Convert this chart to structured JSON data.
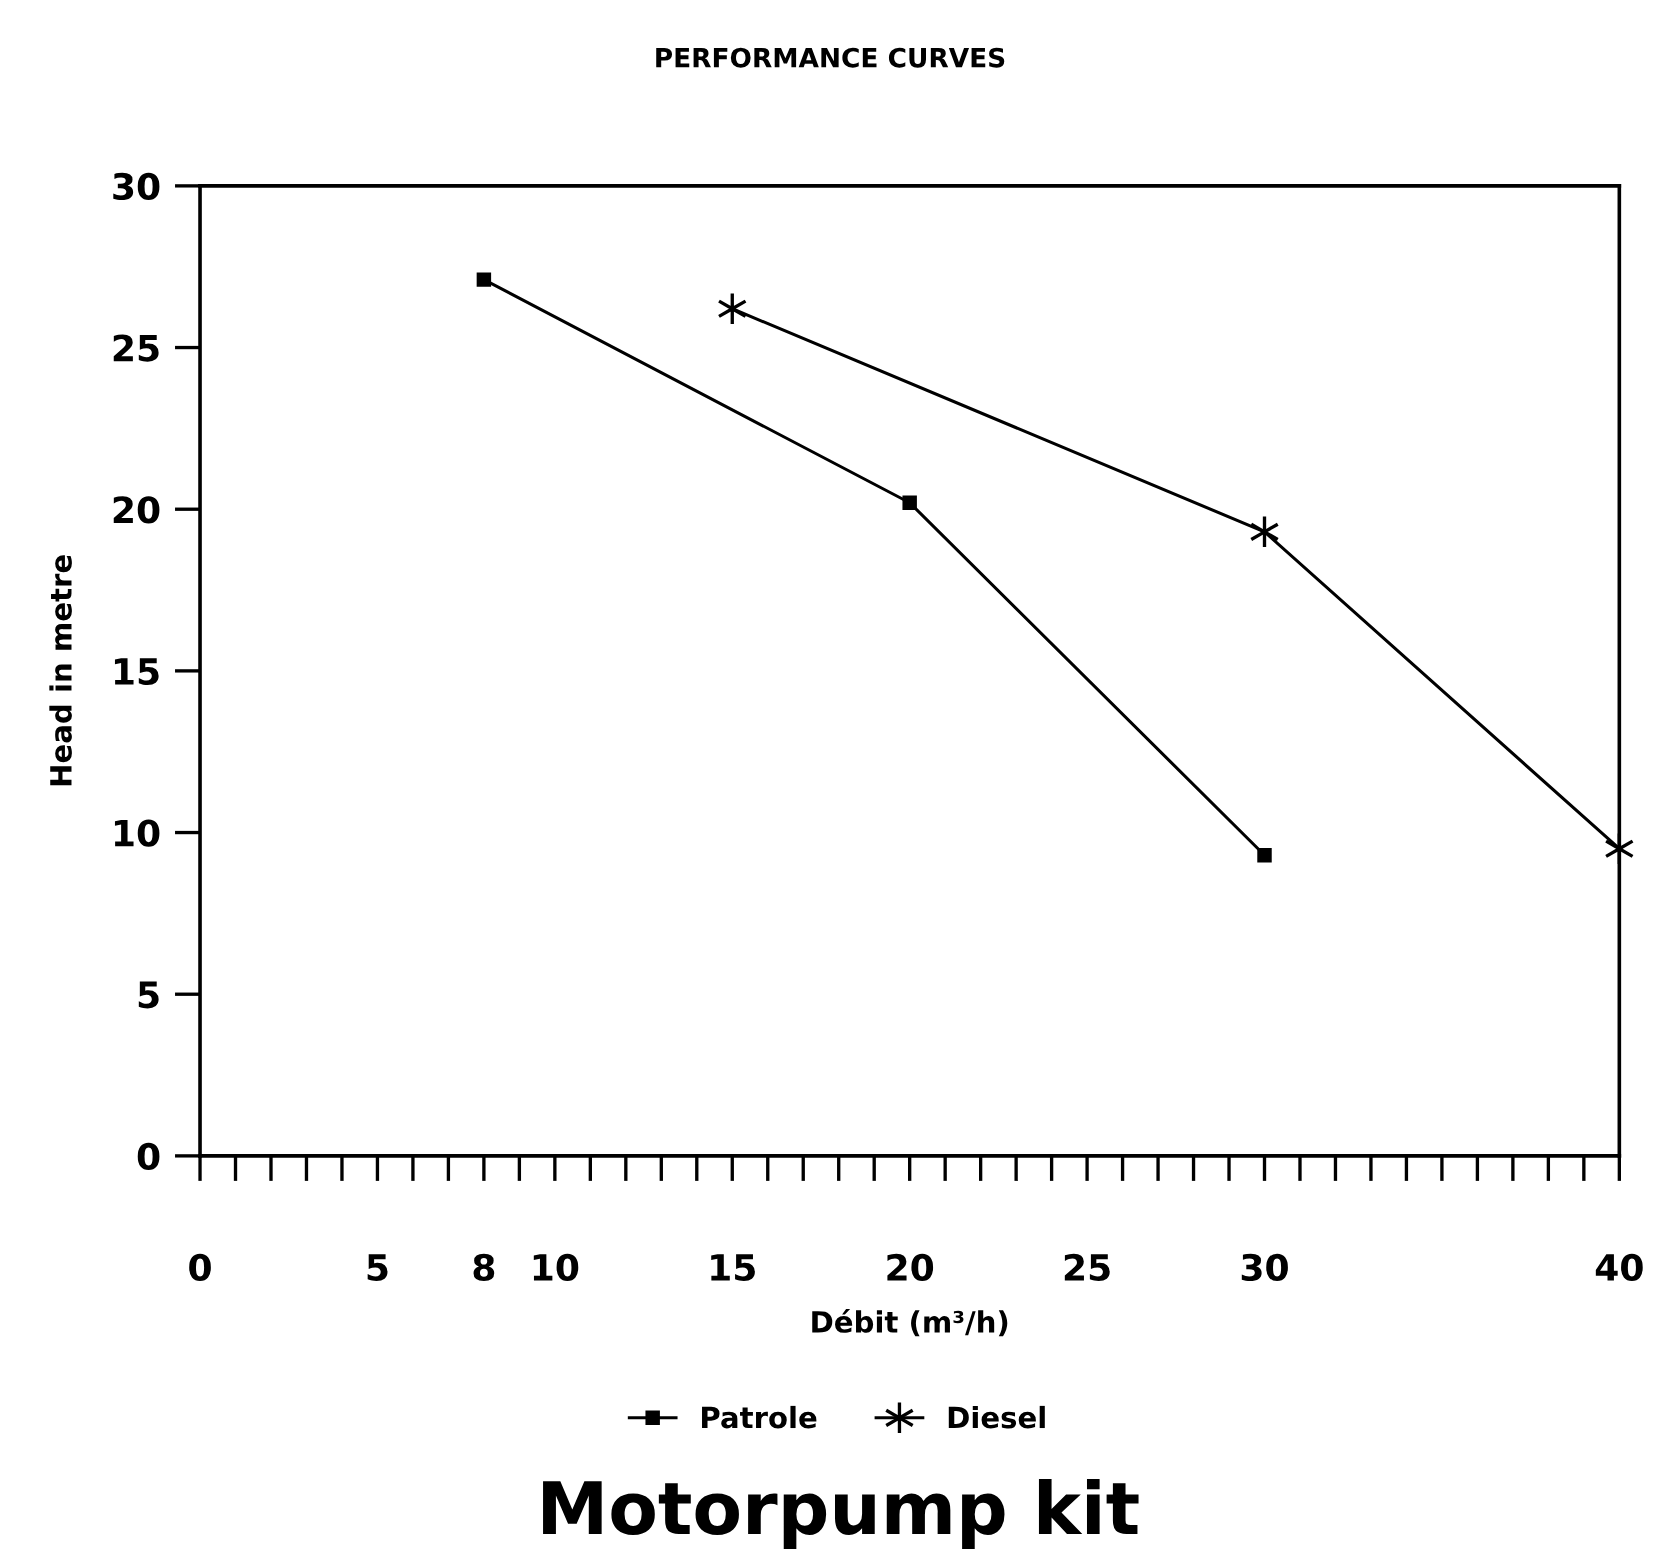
{
  "chart_data": {
    "type": "line",
    "title": "PERFORMANCE CURVES",
    "xlabel": "Débit (m³/h)",
    "ylabel": "Head in metre",
    "annotations": [
      "Motorpump kit"
    ],
    "xlim": [
      0,
      40
    ],
    "ylim": [
      0,
      30
    ],
    "xticks": [
      0,
      {
        "value": 1,
        "label": null
      },
      {
        "value": 2,
        "label": null
      },
      {
        "value": 3,
        "label": null
      },
      {
        "value": 4,
        "label": null
      },
      5,
      {
        "value": 6,
        "label": null
      },
      {
        "value": 7,
        "label": null
      },
      8,
      {
        "value": 9,
        "label": null
      },
      10,
      {
        "value": 11,
        "label": null
      },
      {
        "value": 12,
        "label": null
      },
      {
        "value": 13,
        "label": null
      },
      {
        "value": 14,
        "label": null
      },
      15,
      {
        "value": 16,
        "label": null
      },
      {
        "value": 17,
        "label": null
      },
      {
        "value": 18,
        "label": null
      },
      {
        "value": 19,
        "label": null
      },
      20,
      {
        "value": 21,
        "label": null
      },
      {
        "value": 22,
        "label": null
      },
      {
        "value": 23,
        "label": null
      },
      {
        "value": 24,
        "label": null
      },
      25,
      {
        "value": 26,
        "label": null
      },
      {
        "value": 27,
        "label": null
      },
      {
        "value": 28,
        "label": null
      },
      {
        "value": 29,
        "label": null
      },
      30,
      {
        "value": 31,
        "label": null
      },
      {
        "value": 32,
        "label": null
      },
      {
        "value": 33,
        "label": null
      },
      {
        "value": 34,
        "label": null
      },
      {
        "value": 35,
        "label": null
      },
      {
        "value": 36,
        "label": null
      },
      {
        "value": 37,
        "label": null
      },
      {
        "value": 38,
        "label": null
      },
      {
        "value": 39,
        "label": null
      },
      40
    ],
    "yticks": [
      0,
      5,
      10,
      15,
      20,
      25,
      30
    ],
    "grid": false,
    "legend": "bottom",
    "line_style": "solid",
    "series": [
      {
        "name": "Patrole",
        "color": "#000000",
        "marker": "square",
        "x": [
          8,
          20,
          30
        ],
        "values": [
          27.1,
          20.2,
          9.3
        ]
      },
      {
        "name": "Diesel",
        "color": "#000000",
        "marker": "cross",
        "x": [
          15,
          30,
          40
        ],
        "values": [
          26.2,
          19.3,
          9.5
        ]
      }
    ]
  }
}
